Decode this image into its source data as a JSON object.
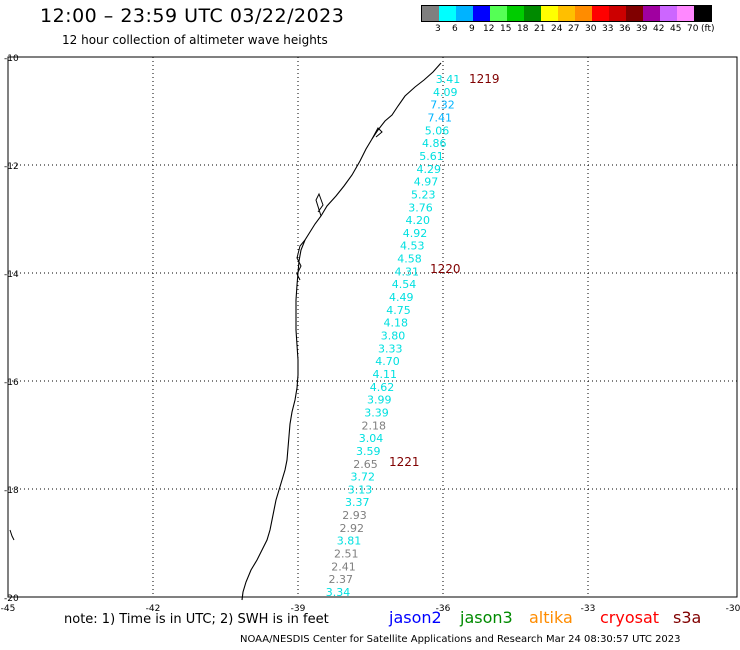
{
  "title": "12:00 – 23:59 UTC 03/22/2023",
  "subtitle": "12 hour collection of altimeter wave heights",
  "color_scale": {
    "unit": "(ft)",
    "labels": [
      "3",
      "6",
      "9",
      "12",
      "15",
      "18",
      "21",
      "24",
      "27",
      "30",
      "33",
      "36",
      "39",
      "42",
      "45",
      "70"
    ],
    "colors": [
      "#7f7f7f",
      "#00ffff",
      "#00b3ff",
      "#0000ff",
      "#55ff55",
      "#00cc00",
      "#008a00",
      "#ffff00",
      "#ffbf00",
      "#ff8c00",
      "#ff0000",
      "#cc0000",
      "#800000",
      "#a000a0",
      "#cc66ff",
      "#ff88ff",
      "#000000"
    ]
  },
  "axes": {
    "lat_labels": [
      "-10",
      "-12",
      "-14",
      "-16",
      "-18",
      "-20"
    ],
    "lon_labels": [
      "-45",
      "-42",
      "-39",
      "-36",
      "-33",
      "-30"
    ]
  },
  "time_labels": [
    "1219",
    "1220",
    "1221"
  ],
  "track": [
    {
      "v": "3.41",
      "c": "#00e0e0"
    },
    {
      "v": "4.09",
      "c": "#00e0e0"
    },
    {
      "v": "7.32",
      "c": "#00b3ff"
    },
    {
      "v": "7.41",
      "c": "#00b3ff"
    },
    {
      "v": "5.06",
      "c": "#00e0e0"
    },
    {
      "v": "4.86",
      "c": "#00e0e0"
    },
    {
      "v": "5.61",
      "c": "#00e0e0"
    },
    {
      "v": "4.29",
      "c": "#00e0e0"
    },
    {
      "v": "4.97",
      "c": "#00e0e0"
    },
    {
      "v": "5.23",
      "c": "#00e0e0"
    },
    {
      "v": "3.76",
      "c": "#00e0e0"
    },
    {
      "v": "4.20",
      "c": "#00e0e0"
    },
    {
      "v": "4.92",
      "c": "#00e0e0"
    },
    {
      "v": "4.53",
      "c": "#00e0e0"
    },
    {
      "v": "4.58",
      "c": "#00e0e0"
    },
    {
      "v": "4.31",
      "c": "#00e0e0"
    },
    {
      "v": "4.54",
      "c": "#00e0e0"
    },
    {
      "v": "4.49",
      "c": "#00e0e0"
    },
    {
      "v": "4.75",
      "c": "#00e0e0"
    },
    {
      "v": "4.18",
      "c": "#00e0e0"
    },
    {
      "v": "3.80",
      "c": "#00e0e0"
    },
    {
      "v": "3.33",
      "c": "#00e0e0"
    },
    {
      "v": "4.70",
      "c": "#00e0e0"
    },
    {
      "v": "4.11",
      "c": "#00e0e0"
    },
    {
      "v": "4.62",
      "c": "#00e0e0"
    },
    {
      "v": "3.99",
      "c": "#00e0e0"
    },
    {
      "v": "3.39",
      "c": "#00e0e0"
    },
    {
      "v": "2.18",
      "c": "#7f7f7f"
    },
    {
      "v": "3.04",
      "c": "#00e0e0"
    },
    {
      "v": "3.59",
      "c": "#00e0e0"
    },
    {
      "v": "2.65",
      "c": "#7f7f7f"
    },
    {
      "v": "3.72",
      "c": "#00e0e0"
    },
    {
      "v": "3.13",
      "c": "#00e0e0"
    },
    {
      "v": "3.37",
      "c": "#00e0e0"
    },
    {
      "v": "2.93",
      "c": "#7f7f7f"
    },
    {
      "v": "2.92",
      "c": "#7f7f7f"
    },
    {
      "v": "3.81",
      "c": "#00e0e0"
    },
    {
      "v": "2.51",
      "c": "#7f7f7f"
    },
    {
      "v": "2.41",
      "c": "#7f7f7f"
    },
    {
      "v": "2.37",
      "c": "#7f7f7f"
    },
    {
      "v": "3.34",
      "c": "#00e0e0"
    }
  ],
  "note": "note: 1) Time is in UTC; 2) SWH is in feet",
  "satellites": [
    {
      "name": "jason2",
      "color": "#0000ff"
    },
    {
      "name": "jason3",
      "color": "#008a00"
    },
    {
      "name": "altika",
      "color": "#ff8c00"
    },
    {
      "name": "cryosat",
      "color": "#ff0000"
    },
    {
      "name": "s3a",
      "color": "#800000"
    }
  ],
  "footer": "NOAA/NESDIS Center for Satellite Applications and Research   Mar 24 08:30:57 UTC 2023"
}
